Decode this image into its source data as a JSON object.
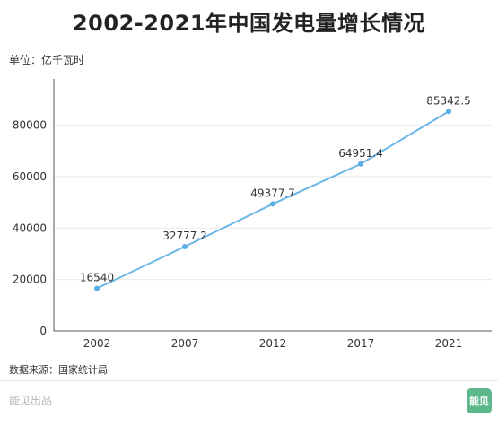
{
  "title": "2002-2021年中国发电量增长情况",
  "unit_label": "单位：亿千瓦时",
  "source_label": "数据来源：国家统计局",
  "brand_label": "能见出品",
  "logo_text": "能见",
  "colors": {
    "line": "#6bb7e6",
    "point": "#5aaee3",
    "grid": "#e9e9e9",
    "axis": "#555555",
    "logo": "#5cb88a"
  },
  "chart_data": {
    "type": "line",
    "title": "2002-2021年中国发电量增长情况",
    "xlabel": "",
    "ylabel": "单位：亿千瓦时",
    "categories": [
      "2002",
      "2007",
      "2012",
      "2017",
      "2021"
    ],
    "series": [
      {
        "values": [
          16540,
          32777.2,
          49377.7,
          64951.4,
          85342.5
        ],
        "labels": [
          "16540",
          "32777.2",
          "49377.7",
          "64951.4",
          "85342.5"
        ]
      }
    ],
    "yticks": [
      0,
      20000,
      40000,
      60000,
      80000
    ],
    "ylim": [
      0,
      98000
    ],
    "grid": "horizontal",
    "legend": "none"
  }
}
